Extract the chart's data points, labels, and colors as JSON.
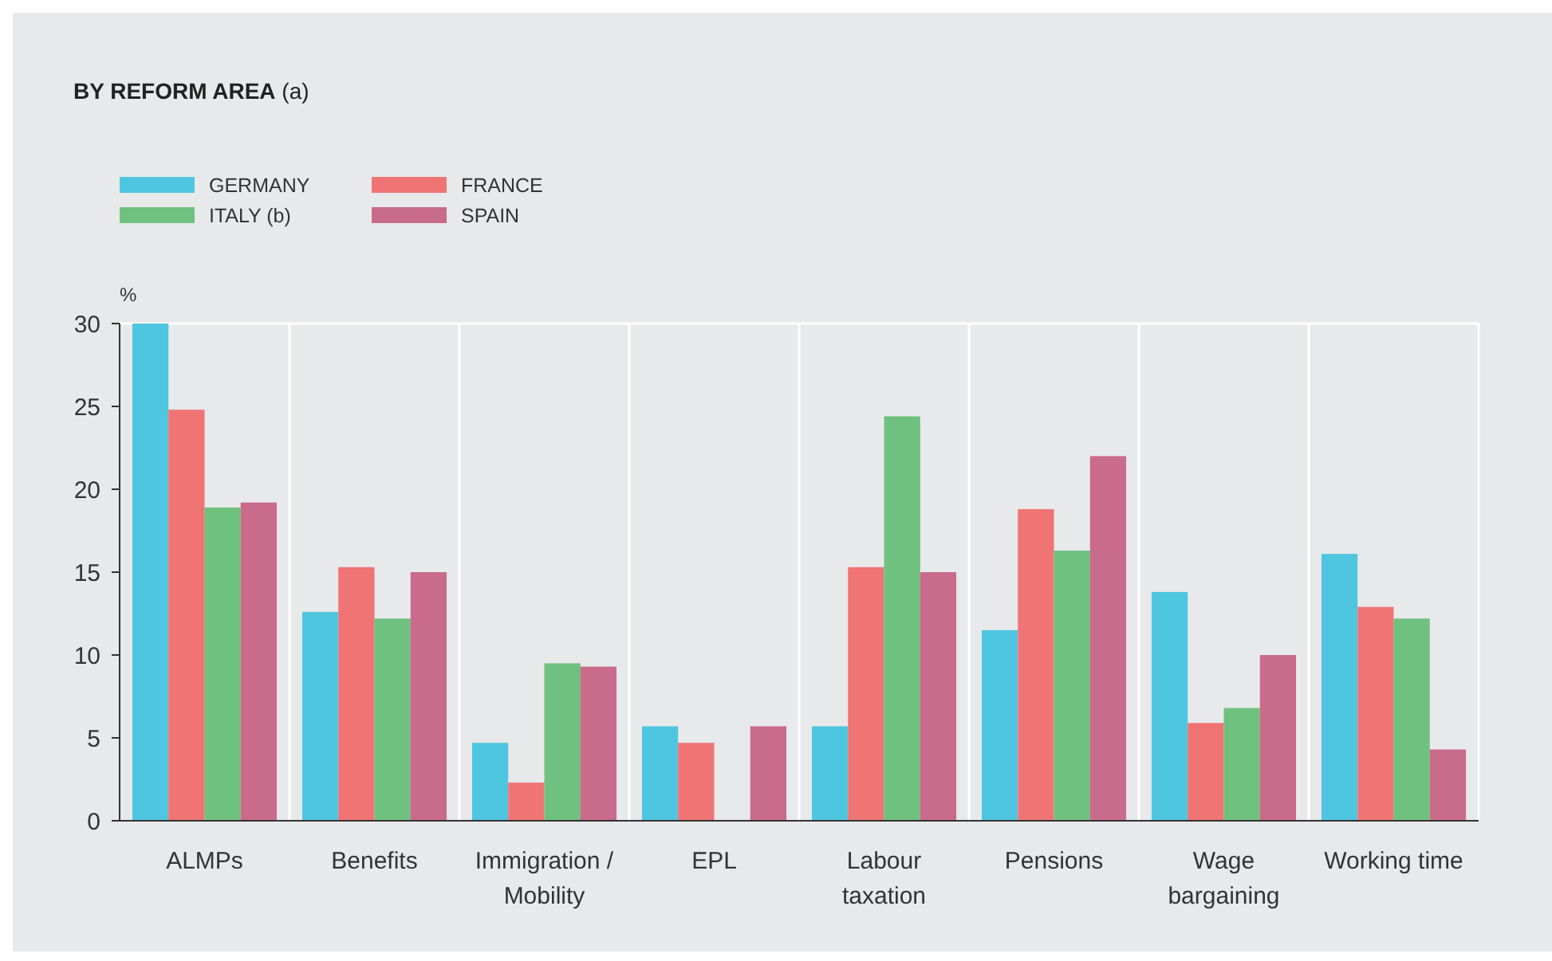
{
  "chart_data": {
    "type": "bar",
    "title": "BY REFORM AREA (a)",
    "ylabel": "%",
    "categories": [
      "ALMPs",
      "Benefits",
      "Immigration / Mobility",
      "EPL",
      "Labour taxation",
      "Pensions",
      "Wage bargaining",
      "Working time"
    ],
    "series": [
      {
        "name": "GERMANY",
        "color": "#4fc6e0",
        "values": [
          30,
          12.6,
          4.7,
          5.7,
          5.7,
          11.5,
          13.8,
          16.1
        ]
      },
      {
        "name": "FRANCE",
        "color": "#f07474",
        "values": [
          24.8,
          15.3,
          2.3,
          4.7,
          15.3,
          18.8,
          5.9,
          12.9
        ]
      },
      {
        "name": "ITALY (b)",
        "color": "#6fc17f",
        "values": [
          18.9,
          12.2,
          9.5,
          null,
          24.4,
          16.3,
          6.8,
          12.2
        ]
      },
      {
        "name": "SPAIN",
        "color": "#c96b8a",
        "values": [
          19.2,
          15.0,
          9.3,
          5.7,
          15.0,
          22.0,
          10.0,
          4.3
        ]
      }
    ],
    "ylim": [
      0,
      30
    ],
    "yticks": [
      0,
      5,
      10,
      15,
      20,
      25,
      30
    ],
    "grid": "x",
    "legend": "top left"
  }
}
